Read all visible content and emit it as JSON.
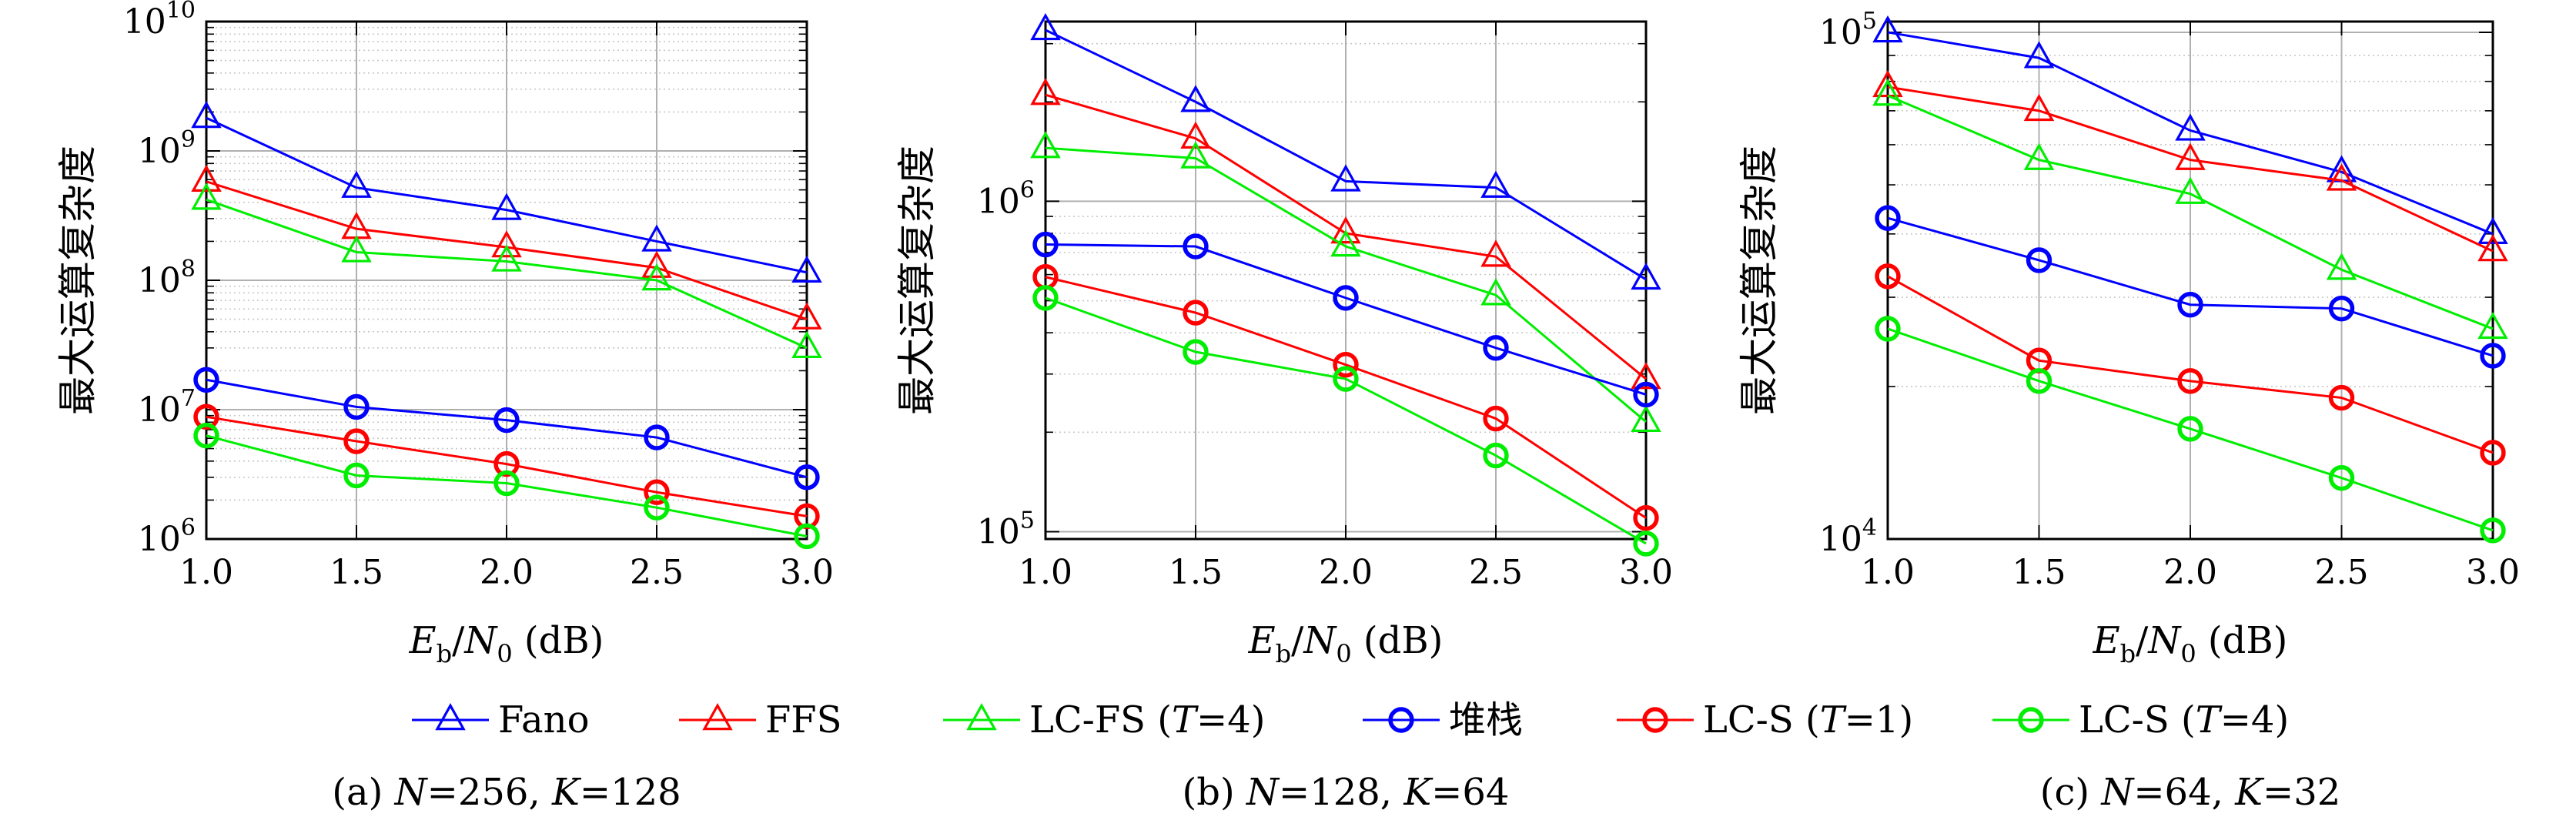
{
  "chart_data": [
    {
      "type": "line",
      "caption": "(a) N=256, K=128",
      "caption_parts": {
        "prefix": "(a) ",
        "n": "N",
        "n_value": "=256, ",
        "k": "K",
        "k_value": "=128"
      },
      "ylabel": "最大运算复杂度",
      "xlabel": {
        "base": "E",
        "sub1": "b",
        "slash": "/",
        "n": "N",
        "sub2": "0",
        "unit": " (dB)"
      },
      "yscale": "log",
      "xlim": [
        1.0,
        3.0
      ],
      "ylim": [
        1000000,
        10000000000
      ],
      "xticks": [
        "1.0",
        "1.5",
        "2.0",
        "2.5",
        "3.0"
      ],
      "yticks": [
        {
          "value": 1000000,
          "base": "10",
          "exp": "6"
        },
        {
          "value": 10000000,
          "base": "10",
          "exp": "7"
        },
        {
          "value": 100000000,
          "base": "10",
          "exp": "8"
        },
        {
          "value": 1000000000,
          "base": "10",
          "exp": "9"
        },
        {
          "value": 10000000000,
          "base": "10",
          "exp": "10"
        }
      ],
      "grid": true,
      "x": [
        1.0,
        1.5,
        2.0,
        2.5,
        3.0
      ],
      "series": [
        {
          "name": "Fano",
          "values": [
            1800000000,
            520000000,
            350000000,
            200000000,
            115000000
          ]
        },
        {
          "name": "FFS",
          "values": [
            580000000,
            250000000,
            180000000,
            125000000,
            50000000
          ]
        },
        {
          "name": "LC-FS (T=4)",
          "values": [
            420000000,
            165000000,
            140000000,
            100000000,
            30000000
          ]
        },
        {
          "name": "堆栈",
          "values": [
            17000000,
            10500000,
            8300000,
            6100000,
            3000000
          ]
        },
        {
          "name": "LC-S (T=1)",
          "values": [
            8800000,
            5700000,
            3800000,
            2300000,
            1500000
          ]
        },
        {
          "name": "LC-S (T=4)",
          "values": [
            6300000,
            3100000,
            2700000,
            1750000,
            1050000
          ]
        }
      ]
    },
    {
      "type": "line",
      "caption": "(b) N=128, K=64",
      "caption_parts": {
        "prefix": "(b) ",
        "n": "N",
        "n_value": "=128, ",
        "k": "K",
        "k_value": "=64"
      },
      "ylabel": "最大运算复杂度",
      "xlabel": {
        "base": "E",
        "sub1": "b",
        "slash": "/",
        "n": "N",
        "sub2": "0",
        "unit": " (dB)"
      },
      "yscale": "log",
      "xlim": [
        1.0,
        3.0
      ],
      "ylim": [
        95000,
        3500000
      ],
      "xticks": [
        "1.0",
        "1.5",
        "2.0",
        "2.5",
        "3.0"
      ],
      "yticks": [
        {
          "value": 100000,
          "base": "10",
          "exp": "5"
        },
        {
          "value": 1000000,
          "base": "10",
          "exp": "6"
        }
      ],
      "grid": true,
      "x": [
        1.0,
        1.5,
        2.0,
        2.5,
        3.0
      ],
      "series": [
        {
          "name": "Fano",
          "values": [
            3300000,
            2000000,
            1150000,
            1100000,
            580000
          ]
        },
        {
          "name": "FFS",
          "values": [
            2100000,
            1550000,
            800000,
            680000,
            290000
          ]
        },
        {
          "name": "LC-FS (T=4)",
          "values": [
            1450000,
            1350000,
            730000,
            520000,
            215000
          ]
        },
        {
          "name": "堆栈",
          "values": [
            740000,
            730000,
            510000,
            360000,
            260000
          ]
        },
        {
          "name": "LC-S (T=1)",
          "values": [
            590000,
            460000,
            320000,
            220000,
            110000
          ]
        },
        {
          "name": "LC-S (T=4)",
          "values": [
            510000,
            350000,
            290000,
            170000,
            92000
          ]
        }
      ]
    },
    {
      "type": "line",
      "caption": "(c) N=64, K=32",
      "caption_parts": {
        "prefix": "(c) ",
        "n": "N",
        "n_value": "=64, ",
        "k": "K",
        "k_value": "=32"
      },
      "ylabel": "最大运算复杂度",
      "xlabel": {
        "base": "E",
        "sub1": "b",
        "slash": "/",
        "n": "N",
        "sub2": "0",
        "unit": " (dB)"
      },
      "yscale": "log",
      "xlim": [
        1.0,
        3.0
      ],
      "ylim": [
        10000,
        105000
      ],
      "xticks": [
        "1.0",
        "1.5",
        "2.0",
        "2.5",
        "3.0"
      ],
      "yticks": [
        {
          "value": 10000,
          "base": "10",
          "exp": "4"
        },
        {
          "value": 100000,
          "base": "10",
          "exp": "5"
        }
      ],
      "grid": true,
      "x": [
        1.0,
        1.5,
        2.0,
        2.5,
        3.0
      ],
      "series": [
        {
          "name": "Fano",
          "values": [
            100000,
            89000,
            64000,
            53000,
            40000
          ]
        },
        {
          "name": "FFS",
          "values": [
            78000,
            70000,
            56000,
            51000,
            37000
          ]
        },
        {
          "name": "LC-FS (T=4)",
          "values": [
            75000,
            56000,
            48000,
            34000,
            26000
          ]
        },
        {
          "name": "堆栈",
          "values": [
            43000,
            35500,
            29000,
            28500,
            23000
          ]
        },
        {
          "name": "LC-S (T=1)",
          "values": [
            33000,
            22500,
            20500,
            19000,
            14800
          ]
        },
        {
          "name": "LC-S (T=4)",
          "values": [
            26000,
            20500,
            16500,
            13200,
            10400
          ]
        }
      ]
    }
  ],
  "legend": {
    "placement": "bottom",
    "entries": [
      {
        "label": "Fano",
        "color": "#0000ff",
        "marker": "triangle"
      },
      {
        "label": "FFS",
        "color": "#ff0000",
        "marker": "triangle"
      },
      {
        "label": "LC-FS (T=4)",
        "color": "#00ee00",
        "marker": "triangle",
        "prefix": "LC-FS (",
        "italic": "T",
        "suffix": "=4)"
      },
      {
        "label": "堆栈",
        "color": "#0000ff",
        "marker": "circle"
      },
      {
        "label": "LC-S (T=1)",
        "color": "#ff0000",
        "marker": "circle",
        "prefix": "LC-S (",
        "italic": "T",
        "suffix": "=1)"
      },
      {
        "label": "LC-S (T=4)",
        "color": "#00ee00",
        "marker": "circle",
        "prefix": "LC-S (",
        "italic": "T",
        "suffix": "=4)"
      }
    ]
  },
  "series_colors": [
    "#0000ff",
    "#ff0000",
    "#00ee00",
    "#0000ff",
    "#ff0000",
    "#00ee00"
  ],
  "series_markers": [
    "triangle",
    "triangle",
    "triangle",
    "circle",
    "circle",
    "circle"
  ]
}
